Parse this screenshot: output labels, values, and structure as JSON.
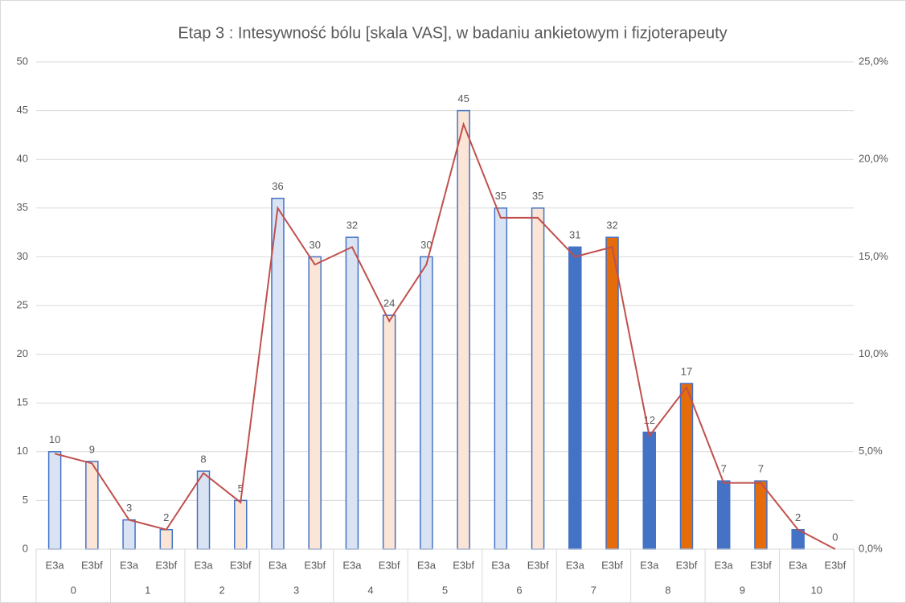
{
  "chart_data": {
    "type": "bar",
    "title": "Etap 3 : Intesywność bólu [skala VAS], w badaniu ankietowym i fizjoterapeuty",
    "categories": [
      "E3a",
      "E3bf",
      "E3a",
      "E3bf",
      "E3a",
      "E3bf",
      "E3a",
      "E3bf",
      "E3a",
      "E3bf",
      "E3a",
      "E3bf",
      "E3a",
      "E3bf",
      "E3a",
      "E3bf",
      "E3a",
      "E3bf",
      "E3a",
      "E3bf",
      "E3a",
      "E3bf"
    ],
    "groups": [
      "0",
      "1",
      "2",
      "3",
      "4",
      "5",
      "6",
      "7",
      "8",
      "9",
      "10"
    ],
    "values": [
      10,
      9,
      3,
      2,
      8,
      5,
      36,
      30,
      32,
      24,
      30,
      45,
      35,
      35,
      31,
      32,
      12,
      17,
      7,
      7,
      2,
      0
    ],
    "fills": [
      "#dae3f3",
      "#fbe5d6",
      "#dae3f3",
      "#fbe5d6",
      "#dae3f3",
      "#fbe5d6",
      "#dae3f3",
      "#fbe5d6",
      "#dae3f3",
      "#fbe5d6",
      "#dae3f3",
      "#fbe5d6",
      "#dae3f3",
      "#fbe5d6",
      "#4472c4",
      "#e46c0a",
      "#4472c4",
      "#e46c0a",
      "#4472c4",
      "#e46c0a",
      "#4472c4",
      "#e46c0a"
    ],
    "stroke": "#4472c4",
    "line": {
      "color": "#c0504d",
      "axis": "y2",
      "values": [
        4.9,
        4.4,
        1.5,
        1.0,
        3.9,
        2.4,
        17.5,
        14.6,
        15.5,
        11.7,
        14.6,
        21.8,
        17.0,
        17.0,
        15.0,
        15.5,
        5.8,
        8.3,
        3.4,
        3.4,
        1.0,
        0.0
      ]
    },
    "ylim": [
      0,
      50
    ],
    "yticks": [
      0,
      5,
      10,
      15,
      20,
      25,
      30,
      35,
      40,
      45,
      50
    ],
    "y2lim": [
      0,
      25
    ],
    "y2ticks": [
      {
        "value": 0,
        "label": "0,0%"
      },
      {
        "value": 5,
        "label": "5,0%"
      },
      {
        "value": 10,
        "label": "10,0%"
      },
      {
        "value": 15,
        "label": "15,0%"
      },
      {
        "value": 20,
        "label": "20,0%"
      },
      {
        "value": 25,
        "label": "25,0%"
      }
    ],
    "grid": true
  }
}
